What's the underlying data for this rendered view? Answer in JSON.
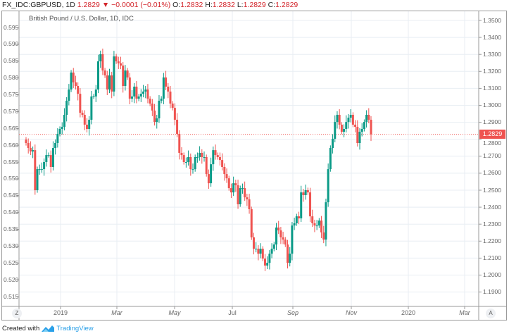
{
  "header": {
    "symbol": "FX_IDC:GBPUSD, 1D",
    "last": "1.2829",
    "change": "−0.0001 (−0.01%)",
    "o_label": "O:",
    "o": "1.2832",
    "h_label": "H:",
    "h": "1.2832",
    "l_label": "L:",
    "l": "1.2829",
    "c_label": "C:",
    "c": "1.2829"
  },
  "footer": {
    "created_with": "Created with",
    "brand": "TradingView"
  },
  "axis_buttons": {
    "left": "Z",
    "right": "A"
  },
  "colors": {
    "up": "#0a9a87",
    "down": "#ef5350",
    "grid": "#e8eef3",
    "price_line": "#ef5350"
  },
  "chart_data": {
    "type": "candlestick",
    "title": "British Pound / U.S. Dollar, 1D, IDC",
    "last_price": "1.2829",
    "right_ticks": [
      "1.3500",
      "1.3400",
      "1.3300",
      "1.3200",
      "1.3100",
      "1.3000",
      "1.2900",
      "1.2800",
      "1.2700",
      "1.2600",
      "1.2500",
      "1.2400",
      "1.2300",
      "1.2200",
      "1.2100",
      "1.2000",
      "1.1900"
    ],
    "left_ticks": [
      "0.595",
      "0.590",
      "0.585",
      "0.580",
      "0.575",
      "0.570",
      "0.565",
      "0.560",
      "0.555",
      "0.550",
      "0.545",
      "0.540",
      "0.535",
      "0.530",
      "0.525",
      "0.520",
      "0.515"
    ],
    "x_ticks": [
      "2019",
      "Mar",
      "May",
      "Jul",
      "Sep",
      "Nov",
      "2020",
      "Mar"
    ],
    "ylim": [
      1.185,
      1.355
    ],
    "close": [
      1.2778,
      1.2749,
      1.2728,
      1.2736,
      1.25,
      1.2624,
      1.2624,
      1.2624,
      1.2666,
      1.2707,
      1.2707,
      1.2637,
      1.2749,
      1.2778,
      1.2832,
      1.2861,
      1.2873,
      1.2944,
      1.3027,
      1.3093,
      1.3193,
      1.3135,
      1.3114,
      1.3068,
      1.2956,
      1.2944,
      1.2886,
      1.2861,
      1.2915,
      1.3052,
      1.3052,
      1.3093,
      1.3259,
      1.3301,
      1.3205,
      1.3176,
      1.3093,
      1.3176,
      1.3081,
      1.3288,
      1.3259,
      1.3247,
      1.3234,
      1.3114,
      1.3205,
      1.3164,
      1.3039,
      1.3052,
      1.311,
      1.3039,
      1.3052,
      1.3068,
      1.3081,
      1.3093,
      1.3039,
      1.301,
      1.2969,
      1.2902,
      1.2923,
      1.3027,
      1.3039,
      1.3164,
      1.311,
      1.3081,
      1.301,
      1.2985,
      1.2915,
      1.2832,
      1.272,
      1.2707,
      1.2666,
      1.2666,
      1.2695,
      1.2624,
      1.2624,
      1.2695,
      1.2695,
      1.272,
      1.2695,
      1.2695,
      1.2595,
      1.2541,
      1.2653,
      1.2736,
      1.2707,
      1.2695,
      1.2678,
      1.2637,
      1.2595,
      1.257,
      1.2512,
      1.2487,
      1.2541,
      1.2529,
      1.2417,
      1.2512,
      1.2512,
      1.2458,
      1.2446,
      1.2388,
      1.2222,
      1.2155,
      1.2155,
      1.2126,
      1.2155,
      1.2097,
      1.2056,
      1.2072,
      1.2126,
      1.2155,
      1.218,
      1.228,
      1.2263,
      1.2222,
      1.2209,
      1.218,
      1.2072,
      1.2126,
      1.2292,
      1.2305,
      1.2346,
      1.2334,
      1.2487,
      1.2471,
      1.25,
      1.2487,
      1.2346,
      1.2305,
      1.2292,
      1.2292,
      1.2321,
      1.2251,
      1.2209,
      1.2429,
      1.2624,
      1.2749,
      1.2803,
      1.2902,
      1.2944,
      1.2886,
      1.2844,
      1.2861,
      1.2902,
      1.2927,
      1.2944,
      1.2886,
      1.2873,
      1.2778,
      1.2844,
      1.2861,
      1.2902,
      1.2944,
      1.2915,
      1.2829
    ]
  }
}
